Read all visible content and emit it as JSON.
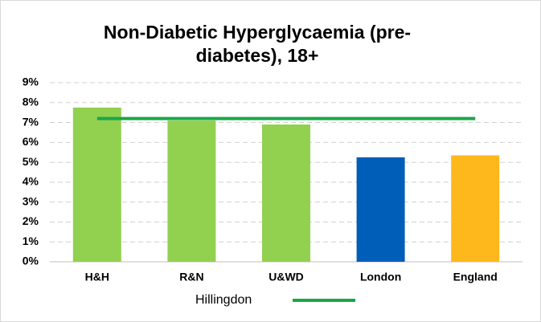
{
  "chart_data": {
    "type": "bar",
    "title": "Non-Diabetic Hyperglycaemia (pre-diabetes), 18+",
    "categories": [
      "H&H",
      "R&N",
      "U&WD",
      "London",
      "England"
    ],
    "values": [
      7.75,
      7.1,
      6.9,
      5.25,
      5.35
    ],
    "colors": [
      "#92d050",
      "#92d050",
      "#92d050",
      "#005eb8",
      "#ffb81c"
    ],
    "series": [
      {
        "name": "Hillingdon",
        "type": "line",
        "color": "#1aa64a",
        "values": [
          7.2,
          7.2,
          7.2,
          7.2,
          7.2
        ]
      }
    ],
    "ylim": [
      0,
      9
    ],
    "yticks": [
      {
        "value": 0,
        "label": "0%"
      },
      {
        "value": 1,
        "label": "1%"
      },
      {
        "value": 2,
        "label": "2%"
      },
      {
        "value": 3,
        "label": "3%"
      },
      {
        "value": 4,
        "label": "4%"
      },
      {
        "value": 5,
        "label": "5%"
      },
      {
        "value": 6,
        "label": "6%"
      },
      {
        "value": 7,
        "label": "7%"
      },
      {
        "value": 8,
        "label": "8%"
      },
      {
        "value": 9,
        "label": "9%"
      }
    ],
    "grid": true,
    "legend": "bottom"
  }
}
